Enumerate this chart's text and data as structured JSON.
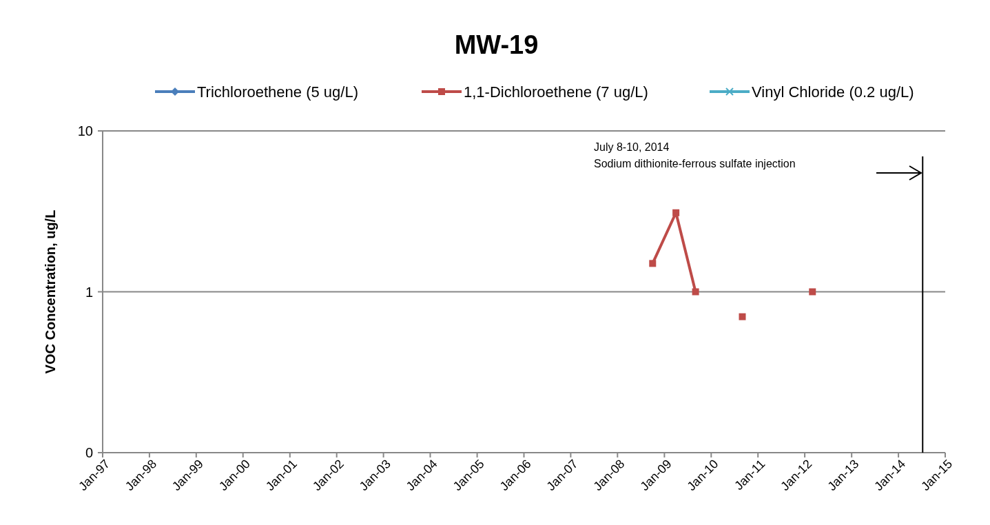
{
  "chart_data": {
    "type": "line",
    "title": "MW-19",
    "ylabel": "VOC Concentration, ug/L",
    "log": "y",
    "grid": "y",
    "legend": "top",
    "line_style": "solid",
    "x": [
      "2008-10",
      "2009-04",
      "2009-09",
      "2010-03",
      "2010-09",
      "2011-06",
      "2012-03"
    ],
    "series": [
      {
        "name": "Trichloroethene (5 ug/L)",
        "color": "#4a7ebb",
        "marker": "diamond",
        "values": [
          null,
          null,
          null,
          null,
          null,
          null,
          null
        ]
      },
      {
        "name": "1,1-Dichloroethene (7 ug/L)",
        "color": "#be4b48",
        "marker": "square",
        "values": [
          1.5,
          3.1,
          1.0,
          null,
          0.7,
          null,
          1.0
        ]
      },
      {
        "name": "Vinyl Chloride (0.2 ug/L)",
        "color": "#4bacc6",
        "marker": "cross",
        "values": [
          null,
          null,
          null,
          null,
          null,
          null,
          null
        ]
      }
    ],
    "ylim": [
      0.1,
      10
    ],
    "yticks": [
      {
        "value": 0.1,
        "label": "0"
      },
      1,
      10
    ],
    "xlim": [
      "1997-01",
      "2015-01"
    ],
    "xticks": [
      {
        "value": "1997-01",
        "label": "Jan-97"
      },
      {
        "value": "1998-01",
        "label": "Jan-98"
      },
      {
        "value": "1999-01",
        "label": "Jan-99"
      },
      {
        "value": "2000-01",
        "label": "Jan-00"
      },
      {
        "value": "2001-01",
        "label": "Jan-01"
      },
      {
        "value": "2002-01",
        "label": "Jan-02"
      },
      {
        "value": "2003-01",
        "label": "Jan-03"
      },
      {
        "value": "2004-01",
        "label": "Jan-04"
      },
      {
        "value": "2005-01",
        "label": "Jan-05"
      },
      {
        "value": "2006-01",
        "label": "Jan-06"
      },
      {
        "value": "2007-01",
        "label": "Jan-07"
      },
      {
        "value": "2008-01",
        "label": "Jan-08"
      },
      {
        "value": "2009-01",
        "label": "Jan-09"
      },
      {
        "value": "2010-01",
        "label": "Jan-10"
      },
      {
        "value": "2011-01",
        "label": "Jan-11"
      },
      {
        "value": "2012-01",
        "label": "Jan-12"
      },
      {
        "value": "2013-01",
        "label": "Jan-13"
      },
      {
        "value": "2014-01",
        "label": "Jan-14"
      },
      {
        "value": "2015-01",
        "label": "Jan-15"
      }
    ],
    "ref_lines": [
      {
        "axis": "x",
        "value": "2014-07-09",
        "label": "July 8-10, 2014\nSodium dithionite-ferrous sulfate injection",
        "color": "#000000"
      }
    ]
  }
}
